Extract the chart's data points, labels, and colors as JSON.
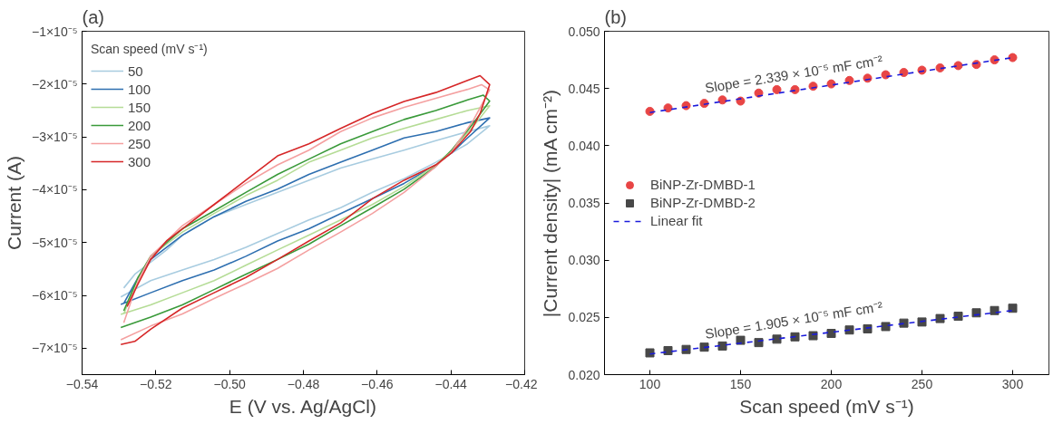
{
  "chart_data": [
    {
      "type": "line",
      "title": "(a)",
      "xlabel": "E (V vs. Ag/AgCl)",
      "ylabel": "Current (A)",
      "legend_title": "Scan speed (mV s⁻¹)",
      "legend": "top left",
      "grid": false,
      "line_style": "solid",
      "marker": "none",
      "xlim": [
        -0.54,
        -0.42
      ],
      "ylim": [
        -7.5e-05,
        -1e-05
      ],
      "xticks": [
        {
          "value": -0.54,
          "label": "−0.54"
        },
        {
          "value": -0.52,
          "label": "−0.52"
        },
        {
          "value": -0.5,
          "label": "−0.50"
        },
        {
          "value": -0.48,
          "label": "−0.48"
        },
        {
          "value": -0.46,
          "label": "−0.46"
        },
        {
          "value": -0.44,
          "label": "−0.44"
        },
        {
          "value": -0.42,
          "label": "−0.42"
        }
      ],
      "yticks": [
        {
          "value": -1e-05,
          "label": "−1×10⁻⁵"
        },
        {
          "value": -2e-05,
          "label": "−2×10⁻⁵"
        },
        {
          "value": -3e-05,
          "label": "−3×10⁻⁵"
        },
        {
          "value": -4e-05,
          "label": "−4×10⁻⁵"
        },
        {
          "value": -5e-05,
          "label": "−5×10⁻⁵"
        },
        {
          "value": -6e-05,
          "label": "−6×10⁻⁵"
        },
        {
          "value": -7e-05,
          "label": "−7×10⁻⁵"
        }
      ],
      "series": [
        {
          "name": "50",
          "color": "#a8cce0",
          "x": [
            -0.5287,
            -0.5257,
            -0.5214,
            -0.5171,
            -0.5128,
            -0.5042,
            -0.4956,
            -0.487,
            -0.4785,
            -0.4699,
            -0.4613,
            -0.4527,
            -0.4441,
            -0.4355,
            -0.4295,
            -0.4355,
            -0.4441,
            -0.4527,
            -0.4613,
            -0.4699,
            -0.4785,
            -0.487,
            -0.4956,
            -0.5042,
            -0.5128,
            -0.5214,
            -0.5295
          ],
          "values": [
            -5.86e-05,
            -5.6e-05,
            -5.37e-05,
            -5.14e-05,
            -4.86e-05,
            -4.51e-05,
            -4.28e-05,
            -4.05e-05,
            -3.82e-05,
            -3.59e-05,
            -3.42e-05,
            -3.25e-05,
            -3.07e-05,
            -2.9e-05,
            -2.79e-05,
            -3.13e-05,
            -3.48e-05,
            -3.79e-05,
            -4.05e-05,
            -4.34e-05,
            -4.57e-05,
            -4.83e-05,
            -5.09e-05,
            -5.32e-05,
            -5.52e-05,
            -5.72e-05,
            -6.03e-05
          ]
        },
        {
          "name": "100",
          "color": "#2e6fb0",
          "x": [
            -0.5287,
            -0.5248,
            -0.5214,
            -0.5128,
            -0.5042,
            -0.4956,
            -0.487,
            -0.4785,
            -0.4699,
            -0.4613,
            -0.4527,
            -0.4441,
            -0.4355,
            -0.4295,
            -0.4355,
            -0.4398,
            -0.4441,
            -0.4527,
            -0.4613,
            -0.4699,
            -0.4785,
            -0.487,
            -0.4956,
            -0.5042,
            -0.5128,
            -0.5214,
            -0.5295
          ],
          "values": [
            -6.15e-05,
            -5.66e-05,
            -5.32e-05,
            -4.86e-05,
            -4.51e-05,
            -4.22e-05,
            -3.99e-05,
            -3.71e-05,
            -3.48e-05,
            -3.25e-05,
            -3.02e-05,
            -2.9e-05,
            -2.73e-05,
            -2.64e-05,
            -3.02e-05,
            -3.3e-05,
            -3.53e-05,
            -3.88e-05,
            -4.17e-05,
            -4.45e-05,
            -4.74e-05,
            -4.97e-05,
            -5.26e-05,
            -5.52e-05,
            -5.72e-05,
            -5.95e-05,
            -6.17e-05
          ]
        },
        {
          "name": "150",
          "color": "#b5dc96",
          "x": [
            -0.5287,
            -0.5248,
            -0.5214,
            -0.5128,
            -0.5042,
            -0.4956,
            -0.487,
            -0.4785,
            -0.4699,
            -0.4613,
            -0.4527,
            -0.4441,
            -0.4355,
            -0.4295,
            -0.4338,
            -0.4398,
            -0.4441,
            -0.4527,
            -0.4613,
            -0.4699,
            -0.4785,
            -0.487,
            -0.4956,
            -0.5042,
            -0.5128,
            -0.5214,
            -0.5295
          ],
          "values": [
            -6.35e-05,
            -5.66e-05,
            -5.26e-05,
            -4.8e-05,
            -4.45e-05,
            -4.11e-05,
            -3.82e-05,
            -3.48e-05,
            -3.25e-05,
            -3.02e-05,
            -2.84e-05,
            -2.67e-05,
            -2.5e-05,
            -2.41e-05,
            -2.79e-05,
            -3.25e-05,
            -3.53e-05,
            -3.94e-05,
            -4.28e-05,
            -4.57e-05,
            -4.86e-05,
            -5.14e-05,
            -5.43e-05,
            -5.72e-05,
            -5.95e-05,
            -6.18e-05,
            -6.36e-05
          ]
        },
        {
          "name": "200",
          "color": "#3a9a3a",
          "x": [
            -0.5287,
            -0.5248,
            -0.5214,
            -0.5128,
            -0.5042,
            -0.4956,
            -0.487,
            -0.4785,
            -0.4699,
            -0.4613,
            -0.4527,
            -0.4441,
            -0.4355,
            -0.4312,
            -0.4295,
            -0.4338,
            -0.4398,
            -0.4441,
            -0.4527,
            -0.4613,
            -0.4699,
            -0.4785,
            -0.487,
            -0.4956,
            -0.5042,
            -0.5128,
            -0.5214,
            -0.5295
          ],
          "values": [
            -6.29e-05,
            -5.66e-05,
            -5.26e-05,
            -4.74e-05,
            -4.4e-05,
            -4.05e-05,
            -3.71e-05,
            -3.42e-05,
            -3.13e-05,
            -2.9e-05,
            -2.67e-05,
            -2.5e-05,
            -2.3e-05,
            -2.21e-05,
            -2.32e-05,
            -2.73e-05,
            -3.25e-05,
            -3.56e-05,
            -3.99e-05,
            -4.34e-05,
            -4.68e-05,
            -5.03e-05,
            -5.32e-05,
            -5.6e-05,
            -5.89e-05,
            -6.18e-05,
            -6.41e-05,
            -6.61e-05
          ]
        },
        {
          "name": "250",
          "color": "#f4a0a0",
          "x": [
            -0.5287,
            -0.5248,
            -0.5214,
            -0.5128,
            -0.5042,
            -0.4956,
            -0.487,
            -0.4785,
            -0.4699,
            -0.4613,
            -0.4527,
            -0.4441,
            -0.4355,
            -0.4317,
            -0.4295,
            -0.4338,
            -0.4398,
            -0.4441,
            -0.4527,
            -0.4613,
            -0.4699,
            -0.4785,
            -0.487,
            -0.4956,
            -0.5042,
            -0.5128,
            -0.5214,
            -0.5295
          ],
          "values": [
            -6.52e-05,
            -5.72e-05,
            -5.26e-05,
            -4.68e-05,
            -4.28e-05,
            -3.88e-05,
            -3.53e-05,
            -3.25e-05,
            -2.9e-05,
            -2.64e-05,
            -2.44e-05,
            -2.27e-05,
            -2.1e-05,
            -2.01e-05,
            -2.11e-05,
            -2.67e-05,
            -3.28e-05,
            -3.56e-05,
            -4.05e-05,
            -4.45e-05,
            -4.8e-05,
            -5.14e-05,
            -5.49e-05,
            -5.78e-05,
            -6.06e-05,
            -6.35e-05,
            -6.58e-05,
            -6.84e-05
          ]
        },
        {
          "name": "300",
          "color": "#d62728",
          "x": [
            -0.5278,
            -0.5248,
            -0.5214,
            -0.5171,
            -0.5128,
            -0.5042,
            -0.4956,
            -0.487,
            -0.4785,
            -0.4699,
            -0.4613,
            -0.4527,
            -0.4441,
            -0.4355,
            -0.4321,
            -0.4295,
            -0.4321,
            -0.4347,
            -0.4398,
            -0.4441,
            -0.4527,
            -0.4613,
            -0.4699,
            -0.4785,
            -0.487,
            -0.4956,
            -0.5042,
            -0.5128,
            -0.5214,
            -0.5257,
            -0.5295
          ],
          "values": [
            -6.21e-05,
            -5.78e-05,
            -5.32e-05,
            -4.97e-05,
            -4.74e-05,
            -4.28e-05,
            -3.82e-05,
            -3.36e-05,
            -3.13e-05,
            -2.84e-05,
            -2.56e-05,
            -2.33e-05,
            -2.16e-05,
            -1.93e-05,
            -1.84e-05,
            -2.01e-05,
            -2.56e-05,
            -2.9e-05,
            -3.3e-05,
            -3.53e-05,
            -3.82e-05,
            -4.17e-05,
            -4.63e-05,
            -4.97e-05,
            -5.32e-05,
            -5.66e-05,
            -5.95e-05,
            -6.24e-05,
            -6.64e-05,
            -6.87e-05,
            -6.93e-05
          ]
        }
      ]
    },
    {
      "type": "scatter",
      "title": "(b)",
      "xlabel": "Scan speed (mV s⁻¹)",
      "ylabel": "|Current density| (mA cm⁻²)",
      "legend": "left",
      "grid": false,
      "xlim": [
        75,
        320
      ],
      "ylim": [
        0.02,
        0.05
      ],
      "xticks": [
        100,
        150,
        200,
        250,
        300
      ],
      "yticks": [
        {
          "value": 0.02,
          "label": "0.020"
        },
        {
          "value": 0.025,
          "label": "0.025"
        },
        {
          "value": 0.03,
          "label": "0.030"
        },
        {
          "value": 0.035,
          "label": "0.035"
        },
        {
          "value": 0.04,
          "label": "0.040"
        },
        {
          "value": 0.045,
          "label": "0.045"
        },
        {
          "value": 0.05,
          "label": "0.050"
        }
      ],
      "x": [
        100,
        110,
        120,
        130,
        140,
        150,
        160,
        170,
        180,
        190,
        200,
        210,
        220,
        230,
        240,
        250,
        260,
        270,
        280,
        290,
        300
      ],
      "annotations": [
        "Slope = 2.339 × 10⁻⁵ mF cm⁻²",
        "Slope = 1.905 × 10⁻⁵ mF cm⁻²"
      ],
      "series": [
        {
          "name": "BiNP-Zr-DMBD-1",
          "type": "scatter",
          "marker": "circle",
          "color": "#e84545",
          "values": [
            0.043,
            0.0433,
            0.0435,
            0.0437,
            0.044,
            0.0439,
            0.0446,
            0.0449,
            0.0449,
            0.0452,
            0.0454,
            0.0457,
            0.0459,
            0.0462,
            0.0464,
            0.0466,
            0.0468,
            0.047,
            0.0471,
            0.0475,
            0.0477
          ]
        },
        {
          "name": "BiNP-Zr-DMBD-2",
          "type": "scatter",
          "marker": "square",
          "color": "#484848",
          "values": [
            0.0219,
            0.0221,
            0.0222,
            0.0224,
            0.0225,
            0.023,
            0.0228,
            0.0231,
            0.0233,
            0.0234,
            0.0236,
            0.0239,
            0.024,
            0.0242,
            0.0245,
            0.0246,
            0.0249,
            0.0251,
            0.0254,
            0.0256,
            0.0258
          ]
        },
        {
          "name": "Linear fit",
          "type": "line",
          "line_style": "dashed",
          "marker": "none",
          "color": "#1a1adc",
          "x": [
            100,
            300
          ],
          "values": [
            0.0429,
            0.0477
          ]
        },
        {
          "type": "line",
          "line_style": "dashed",
          "marker": "none",
          "color": "#1a1adc",
          "x": [
            100,
            300
          ],
          "values": [
            0.0218,
            0.0256
          ]
        }
      ]
    }
  ]
}
